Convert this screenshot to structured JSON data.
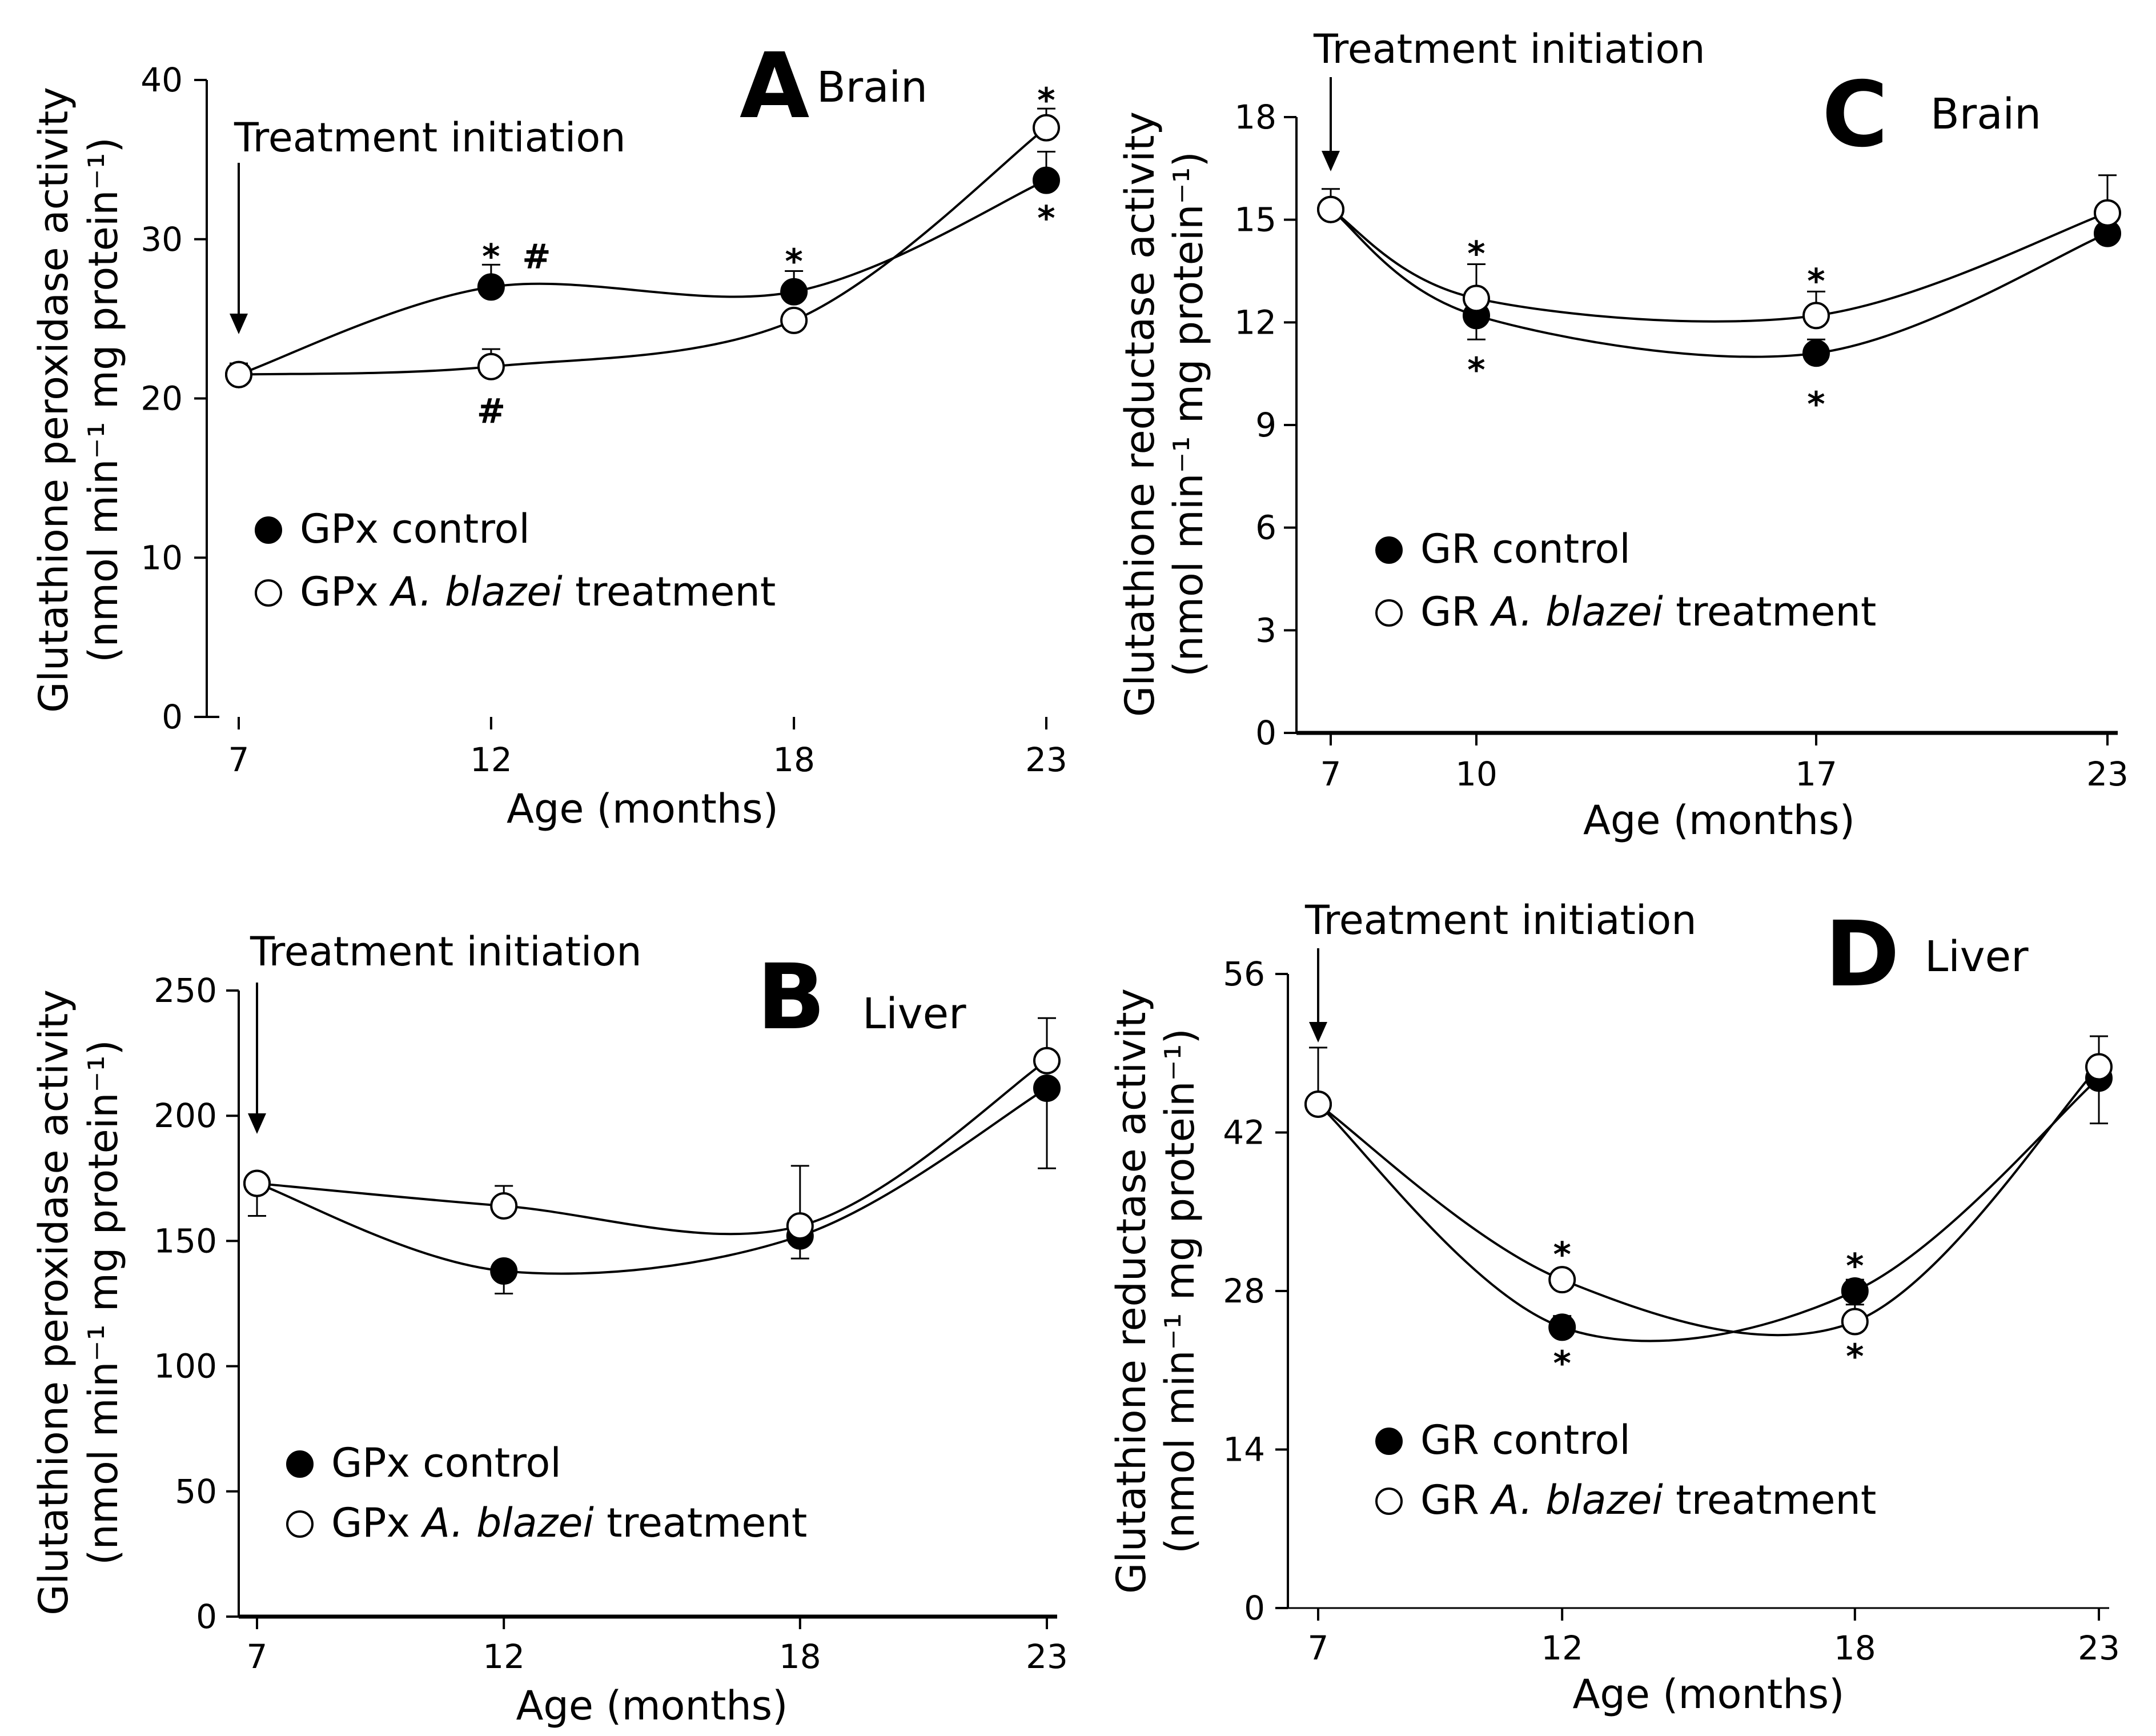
{
  "chart_data": [
    {
      "panel": "A",
      "tissue": "Brain",
      "type": "line",
      "ylabel_line1": "Glutathione peroxidase activity",
      "ylabel_line2": "(nmol min⁻¹ mg protein⁻¹)",
      "xlabel": "Age (months)",
      "annotation": "Treatment initiation",
      "x": [
        7,
        12,
        18,
        23
      ],
      "x_tick_labels": [
        "7",
        "12",
        "18",
        "23"
      ],
      "ylim": [
        0,
        40
      ],
      "y_ticks": [
        0,
        10,
        20,
        30,
        40
      ],
      "axes_style": "left",
      "series": [
        {
          "name": "GPx control",
          "prefix": "GPx control",
          "species": "",
          "suffix": "",
          "marker": "filled",
          "values": [
            21.5,
            27.0,
            26.7,
            33.7
          ],
          "errors": [
            0.7,
            1.4,
            1.3,
            1.8
          ]
        },
        {
          "name": "GPx A. blazei treatment",
          "prefix": "GPx ",
          "species": "A. blazei",
          "suffix": " treatment",
          "marker": "open",
          "values": [
            21.5,
            22.0,
            24.9,
            37.0
          ],
          "errors": [
            0.0,
            1.1,
            0.0,
            1.2
          ]
        }
      ],
      "marks": [
        {
          "x": 12,
          "y": 28.9,
          "text": "*"
        },
        {
          "x": 12.9,
          "y": 28.9,
          "text": "#"
        },
        {
          "x": 12,
          "y": 19.2,
          "text": "#"
        },
        {
          "x": 18,
          "y": 28.6,
          "text": "*"
        },
        {
          "x": 23,
          "y": 38.7,
          "text": "*"
        },
        {
          "x": 23,
          "y": 31.3,
          "text": "*"
        }
      ]
    },
    {
      "panel": "B",
      "tissue": "Liver",
      "type": "line",
      "ylabel_line1": "Glutathione peroxidase activity",
      "ylabel_line2": "(nmol min⁻¹ mg protein⁻¹)",
      "xlabel": "Age (months)",
      "annotation": "Treatment initiation",
      "x": [
        7,
        12,
        18,
        23
      ],
      "x_tick_labels": [
        "7",
        "12",
        "18",
        "23"
      ],
      "ylim": [
        0,
        250
      ],
      "y_ticks": [
        0,
        50,
        100,
        150,
        200,
        250
      ],
      "axes_style": "left-bottom",
      "series": [
        {
          "name": "GPx control",
          "prefix": "GPx control",
          "species": "",
          "suffix": "",
          "marker": "filled",
          "values": [
            173,
            138,
            152,
            211
          ],
          "errors": [
            13,
            9,
            9,
            32
          ]
        },
        {
          "name": "GPx A. blazei treatment",
          "prefix": "GPx ",
          "species": "A. blazei",
          "suffix": " treatment",
          "marker": "open",
          "values": [
            173,
            164,
            156,
            222
          ],
          "errors": [
            0,
            8,
            24,
            17
          ]
        }
      ],
      "marks": []
    },
    {
      "panel": "C",
      "tissue": "Brain",
      "type": "line",
      "ylabel_line1": "Glutathione reductase activity",
      "ylabel_line2": "(nmol min⁻¹ mg protein⁻¹)",
      "xlabel": "Age (months)",
      "annotation": "Treatment initiation",
      "x": [
        7,
        10,
        17,
        23
      ],
      "x_tick_labels": [
        "7",
        "10",
        "17",
        "23"
      ],
      "ylim": [
        0,
        18
      ],
      "y_ticks": [
        0,
        3,
        6,
        9,
        12,
        15,
        18
      ],
      "axes_style": "left-bottom",
      "series": [
        {
          "name": "GR control",
          "prefix": "GR control",
          "species": "",
          "suffix": "",
          "marker": "filled",
          "values": [
            15.3,
            12.2,
            11.1,
            14.6
          ],
          "errors": [
            0.6,
            0.7,
            0.4,
            0.4
          ]
        },
        {
          "name": "GR A. blazei treatment",
          "prefix": "GR ",
          "species": "A. blazei",
          "suffix": " treatment",
          "marker": "open",
          "values": [
            15.3,
            12.7,
            12.2,
            15.2
          ],
          "errors": [
            0,
            1.0,
            0.7,
            1.1
          ]
        }
      ],
      "marks": [
        {
          "x": 10,
          "y": 14.0,
          "text": "*"
        },
        {
          "x": 10,
          "y": 10.6,
          "text": "*"
        },
        {
          "x": 17,
          "y": 13.2,
          "text": "*"
        },
        {
          "x": 17,
          "y": 9.6,
          "text": "*"
        }
      ]
    },
    {
      "panel": "D",
      "tissue": "Liver",
      "type": "line",
      "ylabel_line1": "Glutathione  reductase activity",
      "ylabel_line2": "(nmol min⁻¹ mg protein⁻¹)",
      "xlabel": "Age (months)",
      "annotation": "Treatment initiation",
      "x": [
        7,
        12,
        18,
        23
      ],
      "x_tick_labels": [
        "7",
        "12",
        "18",
        "23"
      ],
      "ylim": [
        0,
        56
      ],
      "y_ticks": [
        0,
        14,
        28,
        42,
        56
      ],
      "axes_style": "left-thinbottom",
      "series": [
        {
          "name": "GR control",
          "prefix": "GR control",
          "species": "",
          "suffix": "",
          "marker": "filled",
          "values": [
            44.5,
            24.8,
            28.0,
            46.8
          ],
          "errors": [
            5.0,
            1.0,
            1.0,
            4.0
          ]
        },
        {
          "name": "GR A. blazei treatment",
          "prefix": "GR ",
          "species": "A. blazei",
          "suffix": " treatment",
          "marker": "open",
          "values": [
            44.5,
            29.0,
            25.3,
            47.8
          ],
          "errors": [
            0,
            0.8,
            1.5,
            2.7
          ]
        }
      ],
      "marks": [
        {
          "x": 12,
          "y": 31.2,
          "text": "*"
        },
        {
          "x": 12,
          "y": 21.6,
          "text": "*"
        },
        {
          "x": 18,
          "y": 30.2,
          "text": "*"
        },
        {
          "x": 18,
          "y": 22.2,
          "text": "*"
        }
      ]
    }
  ]
}
